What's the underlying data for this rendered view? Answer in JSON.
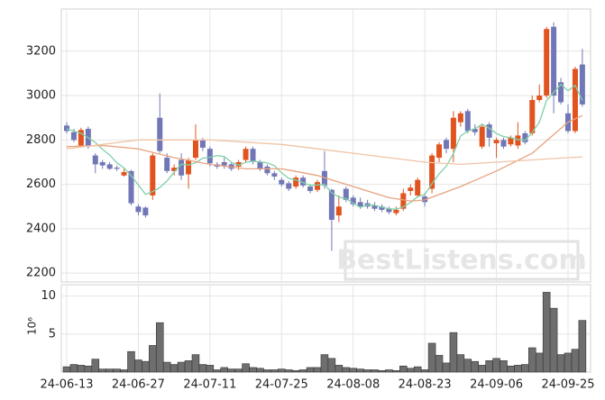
{
  "chart_data": [
    {
      "type": "candlestick",
      "open": [
        2865,
        2835,
        2775,
        2850,
        2730,
        2700,
        2690,
        2675,
        2640,
        2660,
        2500,
        2495,
        2550,
        2900,
        2720,
        2660,
        2710,
        2645,
        2720,
        2800,
        2760,
        2690,
        2700,
        2690,
        2680,
        2710,
        2760,
        2700,
        2680,
        2650,
        2620,
        2605,
        2590,
        2630,
        2590,
        2575,
        2660,
        2575,
        2460,
        2580,
        2540,
        2520,
        2515,
        2505,
        2500,
        2490,
        2470,
        2490,
        2570,
        2550,
        2545,
        2580,
        2720,
        2800,
        2760,
        2880,
        2930,
        2850,
        2770,
        2870,
        2785,
        2800,
        2780,
        2775,
        2830,
        2830,
        2980,
        3000,
        3310,
        3060,
        2920,
        2840,
        3140
      ],
      "high": [
        2880,
        2850,
        2855,
        2860,
        2740,
        2710,
        2700,
        2685,
        2670,
        2665,
        2510,
        2500,
        2740,
        3010,
        2740,
        2690,
        2740,
        2720,
        2870,
        2810,
        2770,
        2700,
        2720,
        2700,
        2710,
        2770,
        2770,
        2710,
        2690,
        2660,
        2630,
        2615,
        2640,
        2640,
        2600,
        2620,
        2750,
        2580,
        2550,
        2590,
        2550,
        2540,
        2530,
        2520,
        2510,
        2500,
        2500,
        2580,
        2600,
        2630,
        2560,
        2740,
        2790,
        2810,
        2930,
        2930,
        2940,
        2870,
        2870,
        2880,
        2810,
        2810,
        2820,
        2880,
        2840,
        3000,
        3050,
        3310,
        3330,
        3080,
        2960,
        3130,
        3210
      ],
      "low": [
        2830,
        2790,
        2765,
        2760,
        2650,
        2670,
        2665,
        2660,
        2635,
        2505,
        2460,
        2450,
        2530,
        2740,
        2650,
        2640,
        2620,
        2580,
        2710,
        2750,
        2680,
        2670,
        2670,
        2660,
        2665,
        2700,
        2690,
        2660,
        2640,
        2620,
        2590,
        2570,
        2580,
        2585,
        2560,
        2565,
        2580,
        2300,
        2430,
        2520,
        2500,
        2490,
        2490,
        2480,
        2475,
        2465,
        2460,
        2480,
        2550,
        2540,
        2500,
        2560,
        2700,
        2740,
        2700,
        2860,
        2830,
        2820,
        2760,
        2770,
        2720,
        2760,
        2770,
        2760,
        2780,
        2820,
        2970,
        2990,
        2920,
        2960,
        2830,
        2830,
        2950
      ],
      "close": [
        2840,
        2800,
        2845,
        2770,
        2690,
        2685,
        2670,
        2670,
        2655,
        2515,
        2475,
        2460,
        2730,
        2750,
        2660,
        2675,
        2640,
        2710,
        2800,
        2765,
        2695,
        2680,
        2685,
        2670,
        2700,
        2760,
        2705,
        2670,
        2650,
        2635,
        2600,
        2580,
        2630,
        2595,
        2570,
        2610,
        2595,
        2440,
        2500,
        2530,
        2510,
        2500,
        2500,
        2490,
        2485,
        2475,
        2485,
        2560,
        2585,
        2620,
        2520,
        2730,
        2780,
        2760,
        2900,
        2920,
        2840,
        2835,
        2860,
        2810,
        2800,
        2770,
        2810,
        2820,
        2790,
        2980,
        3000,
        3300,
        3000,
        2970,
        2840,
        3120,
        2960
      ],
      "up_color": "#e1531f",
      "down_color": "#7177b6",
      "series": [
        {
          "color": "#7fd0a8",
          "values": [
            2850,
            2840,
            2830,
            2810,
            2789,
            2758,
            2732,
            2697,
            2674,
            2639,
            2597,
            2555,
            2567,
            2586,
            2615,
            2655,
            2691,
            2687,
            2697,
            2718,
            2722,
            2730,
            2725,
            2699,
            2686,
            2699,
            2704,
            2701,
            2697,
            2684,
            2652,
            2627,
            2619,
            2608,
            2595,
            2597,
            2600,
            2562,
            2543,
            2535,
            2515,
            2496,
            2508,
            2506,
            2497,
            2490,
            2487,
            2499,
            2518,
            2545,
            2554,
            2603,
            2647,
            2682,
            2738,
            2818,
            2840,
            2851,
            2871,
            2853,
            2829,
            2815,
            2810,
            2802,
            2798,
            2834,
            2880,
            2978,
            3014,
            3050,
            3022,
            3046,
            2978
          ]
        },
        {
          "color": "#e8a27f",
          "values": [
            2770,
            2771,
            2772,
            2773,
            2774,
            2775,
            2772,
            2769,
            2766,
            2763,
            2760,
            2752,
            2744,
            2736,
            2728,
            2720,
            2714,
            2708,
            2702,
            2696,
            2690,
            2686,
            2682,
            2678,
            2674,
            2670,
            2670,
            2670,
            2670,
            2670,
            2670,
            2664,
            2658,
            2652,
            2646,
            2640,
            2630,
            2620,
            2610,
            2600,
            2590,
            2580,
            2570,
            2560,
            2550,
            2540,
            2535,
            2530,
            2525,
            2527,
            2530,
            2542,
            2554,
            2566,
            2578,
            2590,
            2604,
            2618,
            2632,
            2646,
            2660,
            2676,
            2692,
            2708,
            2724,
            2740,
            2768,
            2796,
            2824,
            2852,
            2880,
            2895,
            2910
          ]
        },
        {
          "color": "#f0c4a6",
          "values": [
            2760,
            2764,
            2768,
            2772,
            2776,
            2780,
            2784,
            2788,
            2792,
            2796,
            2800,
            2800,
            2800,
            2800,
            2800,
            2800,
            2800,
            2800,
            2800,
            2800,
            2800,
            2798,
            2796,
            2794,
            2792,
            2790,
            2788,
            2786,
            2784,
            2782,
            2780,
            2776,
            2772,
            2768,
            2764,
            2760,
            2756,
            2752,
            2748,
            2744,
            2740,
            2736,
            2732,
            2728,
            2724,
            2720,
            2716,
            2712,
            2708,
            2704,
            2700,
            2698,
            2696,
            2694,
            2692,
            2690,
            2692,
            2694,
            2696,
            2698,
            2700,
            2702,
            2704,
            2706,
            2708,
            2710,
            2712,
            2714,
            2716,
            2718,
            2720,
            2722,
            2724
          ]
        }
      ],
      "ylim": [
        2160,
        3390
      ],
      "yticks": [
        2200,
        2400,
        2600,
        2800,
        3000,
        3200
      ],
      "grid": true,
      "watermark": "BestListens.com"
    },
    {
      "type": "bar",
      "categories": [
        "24-06-13",
        null,
        null,
        null,
        null,
        null,
        null,
        null,
        null,
        null,
        "24-06-27",
        null,
        null,
        null,
        null,
        null,
        null,
        null,
        null,
        null,
        "24-07-11",
        null,
        null,
        null,
        null,
        null,
        null,
        null,
        null,
        null,
        "24-07-25",
        null,
        null,
        null,
        null,
        null,
        null,
        null,
        null,
        null,
        "24-08-08",
        null,
        null,
        null,
        null,
        null,
        null,
        null,
        null,
        null,
        "24-08-23",
        null,
        null,
        null,
        null,
        null,
        null,
        null,
        null,
        null,
        "24-09-06",
        null,
        null,
        null,
        null,
        null,
        null,
        null,
        null,
        null,
        "24-09-25",
        null,
        null
      ],
      "values": [
        0.7,
        1.0,
        0.9,
        0.8,
        1.7,
        0.4,
        0.4,
        0.4,
        0.3,
        2.7,
        1.6,
        1.4,
        3.5,
        6.5,
        1.3,
        1.0,
        1.3,
        1.5,
        2.3,
        1.0,
        0.9,
        0.3,
        0.6,
        0.4,
        0.4,
        1.1,
        0.6,
        0.5,
        0.3,
        0.3,
        0.4,
        0.3,
        0.2,
        0.3,
        0.6,
        0.6,
        2.3,
        1.8,
        0.9,
        0.6,
        0.5,
        0.4,
        0.3,
        0.3,
        0.2,
        0.3,
        0.2,
        0.8,
        0.5,
        0.7,
        0.3,
        3.8,
        2.2,
        1.2,
        5.2,
        2.3,
        1.7,
        1.4,
        0.9,
        1.5,
        1.8,
        1.5,
        0.8,
        0.9,
        1.0,
        3.2,
        2.5,
        10.5,
        8.4,
        2.3,
        2.5,
        3.0,
        6.8
      ],
      "color": "#6e6e6e",
      "ylim": [
        0,
        11.5
      ],
      "yticks": [
        5,
        10
      ],
      "grid": true,
      "y_label": "10⁶"
    }
  ]
}
